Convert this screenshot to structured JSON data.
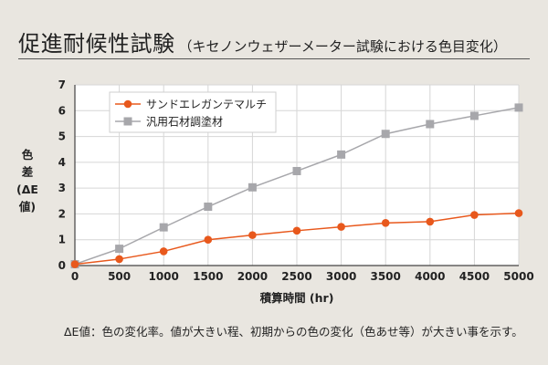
{
  "header": {
    "title": "促進耐候性試験",
    "subtitle": "（キセノンウェザーメーター試験における色目変化）"
  },
  "footnote": "ΔE値：色の変化率。値が大きい程、初期からの色の変化（色あせ等）が大きい事を示す。",
  "colors": {
    "background": "#e9e6e0",
    "plot_background": "#ffffff",
    "series_1": "#e8581c",
    "series_2": "#a7a7ab"
  },
  "chart_data": {
    "type": "line",
    "title": "",
    "xlabel": "積算時間 (hr)",
    "ylabel_lines": [
      "色",
      "差",
      "(ΔE値)"
    ],
    "xlim": [
      0,
      5000
    ],
    "ylim": [
      0,
      7
    ],
    "xticks": [
      0,
      500,
      1000,
      1500,
      2000,
      2500,
      3000,
      3500,
      4000,
      4500,
      5000
    ],
    "yticks": [
      0,
      1,
      2,
      3,
      4,
      5,
      6,
      7
    ],
    "grid": true,
    "legend_position": "top-left",
    "x": [
      0,
      500,
      1000,
      1500,
      2000,
      2500,
      3000,
      3500,
      4000,
      4500,
      5000
    ],
    "series": [
      {
        "name": "サンドエレガンテマルチ",
        "marker": "circle",
        "values": [
          0.05,
          0.25,
          0.55,
          1.0,
          1.18,
          1.35,
          1.5,
          1.65,
          1.7,
          1.96,
          2.03
        ]
      },
      {
        "name": "汎用石材調塗材",
        "marker": "square",
        "values": [
          0.05,
          0.65,
          1.48,
          2.28,
          3.03,
          3.66,
          4.3,
          5.1,
          5.48,
          5.8,
          6.12
        ]
      }
    ]
  }
}
